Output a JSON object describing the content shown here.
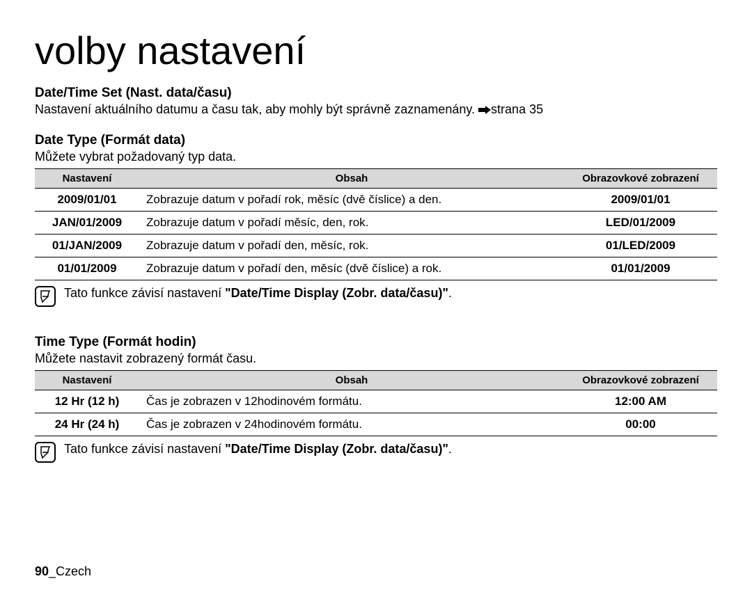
{
  "title": "volby nastavení",
  "datetime_set": {
    "heading": "Date/Time Set (Nast. data/času)",
    "text": "Nastavení aktuálního datumu a času tak, aby mohly být správně zaznamenány.",
    "page_ref": "strana 35"
  },
  "date_type": {
    "heading": "Date Type (Formát data)",
    "intro": "Můžete vybrat požadovaný typ data.",
    "columns": {
      "setting": "Nastavení",
      "content": "Obsah",
      "display": "Obrazovkové zobrazení"
    },
    "rows": [
      {
        "setting": "2009/01/01",
        "content": "Zobrazuje datum v pořadí rok, měsíc (dvě číslice) a den.",
        "display": "2009/01/01"
      },
      {
        "setting": "JAN/01/2009",
        "content": "Zobrazuje datum v pořadí měsíc, den, rok.",
        "display": "LED/01/2009"
      },
      {
        "setting": "01/JAN/2009",
        "content": "Zobrazuje datum v pořadí den, měsíc, rok.",
        "display": "01/LED/2009"
      },
      {
        "setting": "01/01/2009",
        "content": "Zobrazuje datum v pořadí den, měsíc (dvě číslice) a rok.",
        "display": "01/01/2009"
      }
    ],
    "note_pre": "Tato funkce závisí nastavení ",
    "note_bold": "\"Date/Time Display (Zobr. data/času)\"",
    "note_post": "."
  },
  "time_type": {
    "heading": "Time Type (Formát hodin)",
    "intro": "Můžete nastavit zobrazený formát času.",
    "columns": {
      "setting": "Nastavení",
      "content": "Obsah",
      "display": "Obrazovkové zobrazení"
    },
    "rows": [
      {
        "setting": "12 Hr (12 h)",
        "content": "Čas je zobrazen v 12hodinovém formátu.",
        "display": "12:00 AM"
      },
      {
        "setting": "24 Hr (24 h)",
        "content": "Čas je zobrazen v 24hodinovém formátu.",
        "display": "00:00"
      }
    ],
    "note_pre": "Tato funkce závisí nastavení ",
    "note_bold": "\"Date/Time Display (Zobr. data/času)\"",
    "note_post": "."
  },
  "footer": {
    "page_number": "90",
    "separator": "_",
    "language": "Czech"
  }
}
